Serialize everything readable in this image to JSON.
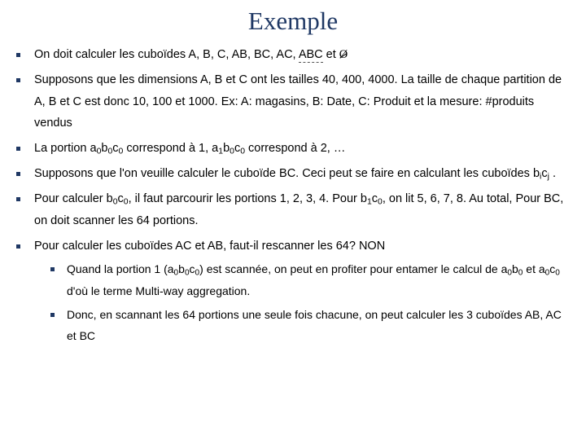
{
  "title": "Exemple",
  "bullets": {
    "b1_pre": "On doit calculer les cuboïdes A, B, C, AB, BC, AC, ",
    "b1_abc": "ABC",
    "b1_mid": " et ",
    "b1_emptyset": "Ø",
    "b2": "Supposons que les dimensions A, B et C ont les tailles 40, 400, 4000. La taille de chaque partition de A, B et C est donc 10, 100 et 1000. Ex: A: magasins, B: Date, C: Produit et la mesure: #produits vendus",
    "b3_a": "La portion a",
    "b3_b": "b",
    "b3_c": "c",
    "b3_d": " correspond à 1, a",
    "b3_e": "b",
    "b3_f": "c",
    "b3_g": " correspond à 2, …",
    "b4_a": "Supposons que l'on veuille calculer le cuboïde BC. Ceci peut se faire en calculant les cuboïdes b",
    "b4_b": "c",
    "b4_c": " .",
    "b5_a": "Pour calculer b",
    "b5_b": "c",
    "b5_c": ", il faut parcourir les portions 1, 2, 3, 4. Pour b",
    "b5_d": "c",
    "b5_e": ", on lit 5, 6, 7, 8. Au total, Pour BC, on doit scanner les 64 portions.",
    "b6": "Pour calculer les cuboïdes AC et AB, faut-il rescanner les 64? NON",
    "s1_a": "Quand la portion 1 (a",
    "s1_b": "b",
    "s1_c": "c",
    "s1_d": ") est scannée, on peut en profiter pour entamer le calcul de a",
    "s1_e": "b",
    "s1_f": " et a",
    "s1_g": "c",
    "s1_h": "  d'où le terme Multi-way aggregation.",
    "s2": "Donc, en scannant les 64 portions une seule fois chacune, on peut calculer les 3 cuboïdes AB, AC et BC"
  },
  "sub": {
    "zero": "0",
    "one": "1",
    "i": "i",
    "j": "j"
  }
}
